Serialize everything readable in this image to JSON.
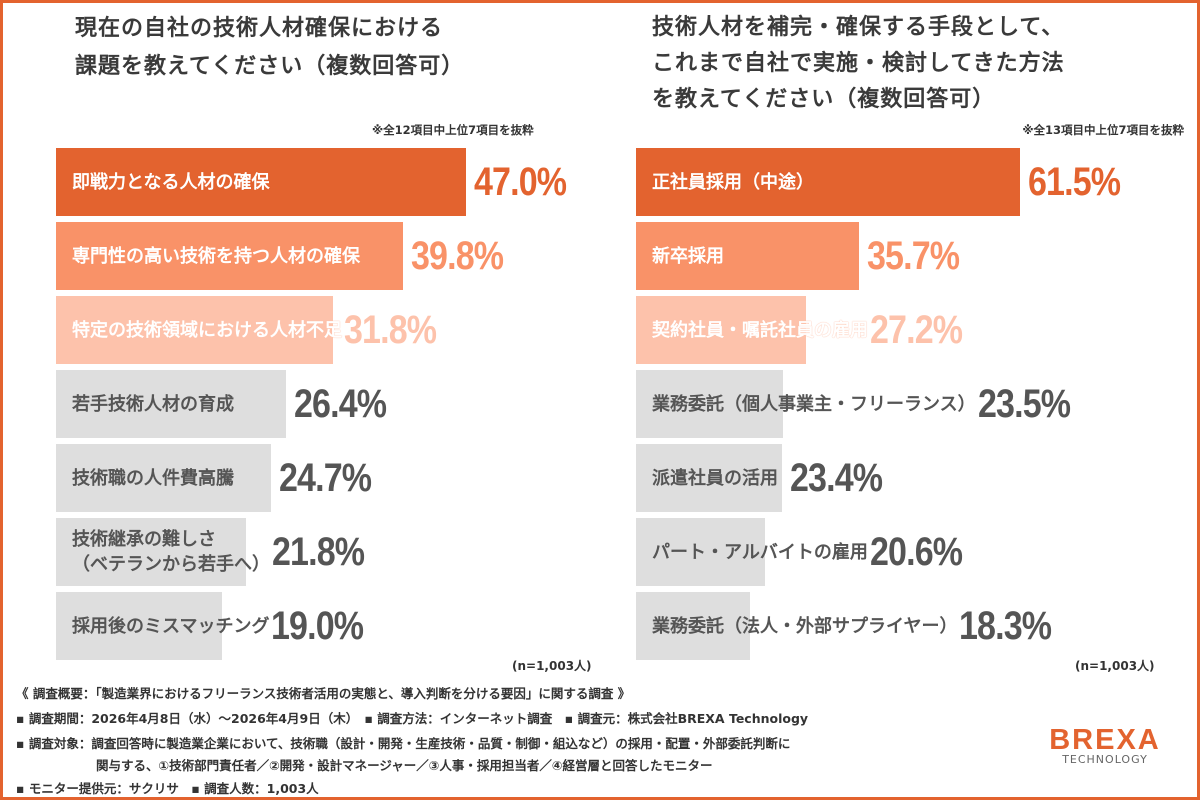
{
  "chart_data": [
    {
      "type": "bar",
      "orientation": "horizontal",
      "title": "現在の自社の技術人材確保における\n課題を教えてください（複数回答可）",
      "note": "※全12項目中上位7項目を抜粋",
      "n": "(n=1,003人)",
      "categories": [
        "即戦力となる人材の確保",
        "専門性の高い技術を持つ人材の確保",
        "特定の技術領域における人材不足",
        "若手技術人材の育成",
        "技術職の人件費高騰",
        "技術継承の難しさ\n（ベテランから若手へ）",
        "採用後のミスマッチング"
      ],
      "values": [
        47.0,
        39.8,
        31.8,
        26.4,
        24.7,
        21.8,
        19.0
      ],
      "unit": "%"
    },
    {
      "type": "bar",
      "orientation": "horizontal",
      "title": "技術人材を補完・確保する手段として、\nこれまで自社で実施・検討してきた方法\nを教えてください（複数回答可）",
      "note": "※全13項目中上位7項目を抜粋",
      "n": "(n=1,003人)",
      "categories": [
        "正社員採用（中途）",
        "新卒採用",
        "契約社員・嘱託社員の雇用",
        "業務委託（個人事業主・フリーランス）",
        "派遣社員の活用",
        "パート・アルバイトの雇用",
        "業務委託（法人・外部サプライヤー）"
      ],
      "values": [
        61.5,
        35.7,
        27.2,
        23.5,
        23.4,
        20.6,
        18.3
      ],
      "unit": "%"
    }
  ],
  "colors": {
    "rank1": "#e3632f",
    "rank2": "#f99268",
    "rank3": "#fdc2ab",
    "other": "#dedede",
    "other_text": "#555555",
    "accent": "#e3632f"
  },
  "footer": {
    "summary": "《 調査概要：「製造業界におけるフリーランス技術者活用の実態と、導入判断を分ける要因」に関する調査 》",
    "line1": "▪ 調査期間：2026年4月8日（水）〜2026年4月9日（木）　▪ 調査方法：インターネット調査　▪ 調査元：株式会社BREXA Technology",
    "line2": "▪ 調査対象：調査回答時に製造業企業において、技術職（設計・開発・生産技術・品質・制御・組込など）の採用・配置・外部委託判断に",
    "line3": "関与する、①技術部門責任者／②開発・設計マネージャー／③人事・採用担当者／④経営層と回答したモニター",
    "line4": "▪ モニター提供元：サクリサ　▪ 調査人数：1,003人"
  },
  "logo": {
    "name": "BREXA",
    "sub": "TECHNOLOGY"
  }
}
